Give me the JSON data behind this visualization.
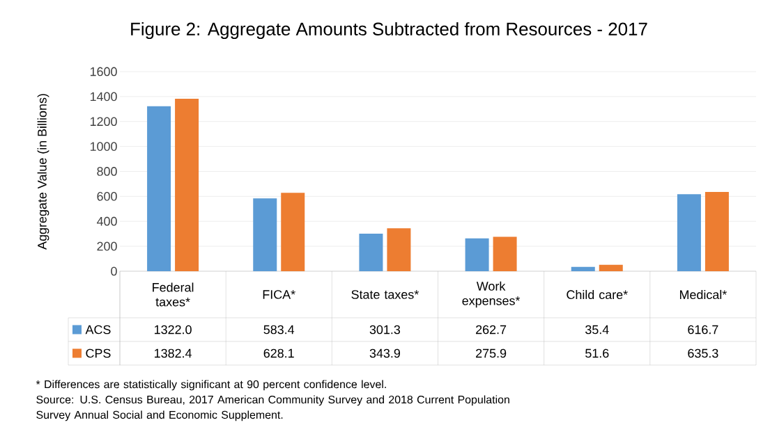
{
  "chart_data": {
    "type": "bar",
    "title": "Figure 2: Aggregate Amounts Subtracted from Resources - 2017",
    "ylabel": "Aggregate Value (in Billions)",
    "categories": [
      "Federal taxes*",
      "FICA*",
      "State taxes*",
      "Work expenses*",
      "Child care*",
      "Medical*"
    ],
    "series": [
      {
        "name": "ACS",
        "color": "#5b9bd5",
        "values": [
          1322.0,
          583.4,
          301.3,
          262.7,
          35.4,
          616.7
        ],
        "value_labels": [
          "1322.0",
          "583.4",
          "301.3",
          "262.7",
          "35.4",
          "616.7"
        ]
      },
      {
        "name": "CPS",
        "color": "#ed7d31",
        "values": [
          1382.4,
          628.1,
          343.9,
          275.9,
          51.6,
          635.3
        ],
        "value_labels": [
          "1382.4",
          "628.1",
          "343.9",
          "275.9",
          "51.6",
          "635.3"
        ]
      }
    ],
    "ylim": [
      0,
      1600
    ],
    "yticks": [
      0,
      200,
      400,
      600,
      800,
      1000,
      1200,
      1400,
      1600
    ],
    "grid": "y",
    "legend": "bottom",
    "annotations": [
      "* Differences are statistically significant at 90 percent confidence level.",
      "Source: U.S. Census Bureau, 2017 American Community Survey and 2018 Current Population Survey Annual Social and Economic Supplement."
    ]
  }
}
